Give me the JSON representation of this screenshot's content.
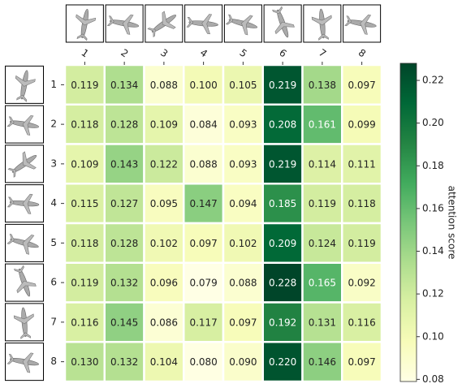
{
  "chart_data": {
    "type": "heatmap",
    "x_categories": [
      "1",
      "2",
      "3",
      "4",
      "5",
      "6",
      "7",
      "8"
    ],
    "y_categories": [
      "1",
      "2",
      "3",
      "4",
      "5",
      "6",
      "7",
      "8"
    ],
    "values": [
      [
        0.119,
        0.134,
        0.088,
        0.1,
        0.105,
        0.219,
        0.138,
        0.097
      ],
      [
        0.118,
        0.128,
        0.109,
        0.084,
        0.093,
        0.208,
        0.161,
        0.099
      ],
      [
        0.109,
        0.143,
        0.122,
        0.088,
        0.093,
        0.219,
        0.114,
        0.111
      ],
      [
        0.115,
        0.127,
        0.095,
        0.147,
        0.094,
        0.185,
        0.119,
        0.118
      ],
      [
        0.118,
        0.128,
        0.102,
        0.097,
        0.102,
        0.209,
        0.124,
        0.119
      ],
      [
        0.119,
        0.132,
        0.096,
        0.079,
        0.088,
        0.228,
        0.165,
        0.092
      ],
      [
        0.116,
        0.145,
        0.086,
        0.117,
        0.097,
        0.192,
        0.131,
        0.116
      ],
      [
        0.13,
        0.132,
        0.104,
        0.08,
        0.09,
        0.22,
        0.146,
        0.097
      ]
    ],
    "value_labels": [
      [
        "0.119",
        "0.134",
        "0.088",
        "0.100",
        "0.105",
        "0.219",
        "0.138",
        "0.097"
      ],
      [
        "0.118",
        "0.128",
        "0.109",
        "0.084",
        "0.093",
        "0.208",
        "0.161",
        "0.099"
      ],
      [
        "0.109",
        "0.143",
        "0.122",
        "0.088",
        "0.093",
        "0.219",
        "0.114",
        "0.111"
      ],
      [
        "0.115",
        "0.127",
        "0.095",
        "0.147",
        "0.094",
        "0.185",
        "0.119",
        "0.118"
      ],
      [
        "0.118",
        "0.128",
        "0.102",
        "0.097",
        "0.102",
        "0.209",
        "0.124",
        "0.119"
      ],
      [
        "0.119",
        "0.132",
        "0.096",
        "0.079",
        "0.088",
        "0.228",
        "0.165",
        "0.092"
      ],
      [
        "0.116",
        "0.145",
        "0.086",
        "0.117",
        "0.097",
        "0.192",
        "0.131",
        "0.116"
      ],
      [
        "0.130",
        "0.132",
        "0.104",
        "0.080",
        "0.090",
        "0.220",
        "0.146",
        "0.097"
      ]
    ],
    "colormap": "YlGn",
    "zlim": [
      0.079,
      0.228
    ],
    "zticks": [
      0.08,
      {
        "value": 0.1,
        "label": "0.10"
      },
      0.12,
      0.14,
      0.16,
      0.18,
      {
        "value": 0.2,
        "label": "0.20"
      },
      0.22
    ],
    "colorbar_label": "attention score"
  }
}
